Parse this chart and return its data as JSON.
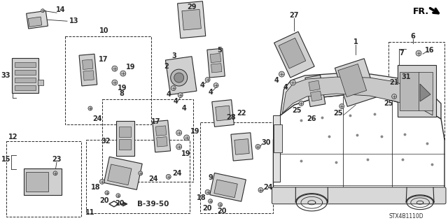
{
  "bg_color": "#ffffff",
  "diagram_code": "STX4B1110D",
  "gray": "#2a2a2a",
  "light_gray": "#cccccc",
  "med_gray": "#888888"
}
